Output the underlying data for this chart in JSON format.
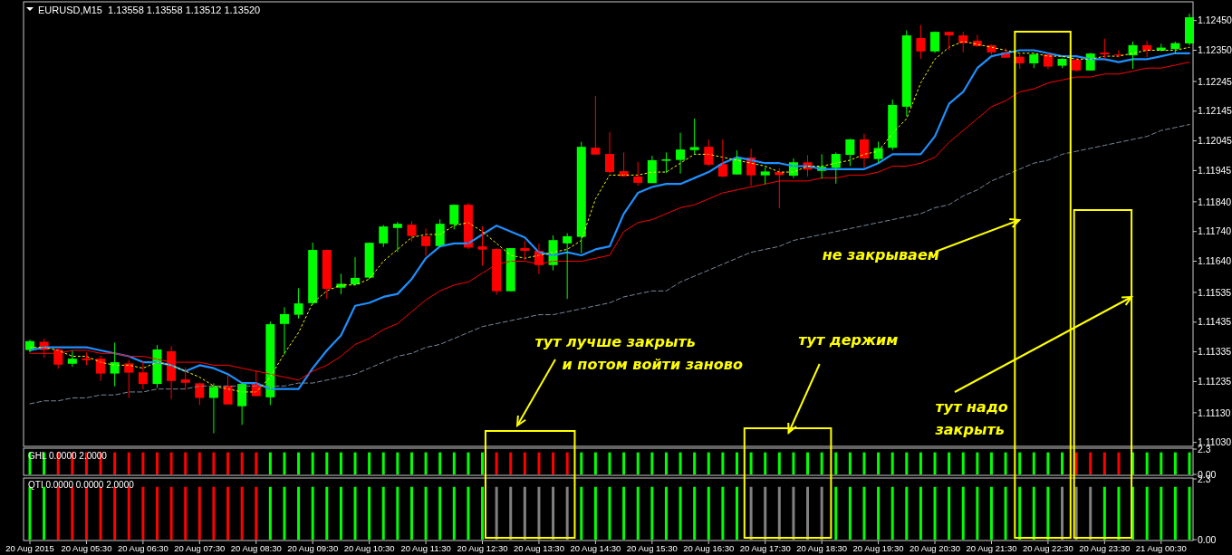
{
  "chart_data": [
    {
      "type": "candlestick",
      "title": "EURUSD,M15  1.13558 1.13558 1.13512 1.13520",
      "tick_labels": "y",
      "categories": [
        null,
        null,
        null,
        null,
        null,
        null,
        null,
        null,
        null,
        null,
        null,
        null,
        null,
        null,
        null,
        null,
        null,
        null,
        null,
        null,
        null,
        null,
        null,
        null,
        null,
        null,
        null,
        null,
        null,
        null,
        null,
        null,
        null,
        null,
        null,
        null,
        null,
        null,
        null,
        null,
        null,
        null,
        null,
        null,
        null,
        null,
        null,
        null,
        null,
        null,
        null,
        null,
        null,
        null,
        null,
        null,
        null,
        null,
        null,
        null,
        null,
        null,
        null,
        null,
        null,
        null,
        null,
        null,
        null,
        null,
        null,
        null,
        null,
        null,
        null,
        null,
        null,
        null,
        null,
        null,
        null,
        null,
        null
      ],
      "ylim": [
        1.1102,
        1.1251
      ],
      "yticks": [
        {
          "value": 1.1245,
          "label": "1.12450"
        },
        {
          "value": 1.1235,
          "label": "1.12350"
        },
        {
          "value": 1.12245,
          "label": "1.12245"
        },
        {
          "value": 1.12145,
          "label": "1.12145"
        },
        {
          "value": 1.12045,
          "label": "1.12045"
        },
        {
          "value": 1.11945,
          "label": "1.11945"
        },
        {
          "value": 1.1184,
          "label": "1.11840"
        },
        {
          "value": 1.1174,
          "label": "1.11740"
        },
        {
          "value": 1.1164,
          "label": "1.11640"
        },
        {
          "value": 1.11535,
          "label": "1.11535"
        },
        {
          "value": 1.11435,
          "label": "1.11435"
        },
        {
          "value": 1.11335,
          "label": "1.11335"
        },
        {
          "value": 1.11235,
          "label": "1.11235"
        },
        {
          "value": 1.1113,
          "label": "1.11130"
        },
        {
          "value": 1.1103,
          "label": "1.11030"
        }
      ],
      "ohlc": [
        [
          1.11341,
          1.11376,
          1.11333,
          1.11371
        ],
        [
          1.11369,
          1.11379,
          1.11315,
          1.11341
        ],
        [
          1.11343,
          1.11349,
          1.11278,
          1.11292
        ],
        [
          1.11295,
          1.11339,
          1.11285,
          1.11312
        ],
        [
          1.11313,
          1.11333,
          1.1129,
          1.11307
        ],
        [
          1.11312,
          1.11322,
          1.11237,
          1.11262
        ],
        [
          1.11262,
          1.11366,
          1.11219,
          1.113
        ],
        [
          1.11296,
          1.11308,
          1.1118,
          1.11265
        ],
        [
          1.11266,
          1.11305,
          1.11209,
          1.11227
        ],
        [
          1.11227,
          1.11358,
          1.11214,
          1.11343
        ],
        [
          1.11337,
          1.11354,
          1.11176,
          1.11237
        ],
        [
          1.11242,
          1.11283,
          1.11207,
          1.11231
        ],
        [
          1.11229,
          1.11231,
          1.11156,
          1.1118
        ],
        [
          1.1118,
          1.11229,
          1.11061,
          1.11217
        ],
        [
          1.11221,
          1.11257,
          1.11158,
          1.11158
        ],
        [
          1.11152,
          1.11231,
          1.11089,
          1.11227
        ],
        [
          1.11227,
          1.11272,
          1.11186,
          1.11186
        ],
        [
          1.11182,
          1.11437,
          1.11156,
          1.11428
        ],
        [
          1.11429,
          1.11485,
          1.11326,
          1.11462
        ],
        [
          1.1146,
          1.11549,
          1.11447,
          1.11498
        ],
        [
          1.11499,
          1.11703,
          1.11493,
          1.11678
        ],
        [
          1.11678,
          1.11678,
          1.11513,
          1.11547
        ],
        [
          1.11551,
          1.11598,
          1.11529,
          1.11564
        ],
        [
          1.11562,
          1.11654,
          1.11559,
          1.11584
        ],
        [
          1.11585,
          1.11703,
          1.1158,
          1.11702
        ],
        [
          1.117,
          1.11762,
          1.11688,
          1.11757
        ],
        [
          1.11752,
          1.11772,
          1.11671,
          1.11766
        ],
        [
          1.11763,
          1.11775,
          1.11706,
          1.11725
        ],
        [
          1.11724,
          1.1175,
          1.11658,
          1.11691
        ],
        [
          1.11691,
          1.11781,
          1.11688,
          1.11766
        ],
        [
          1.11764,
          1.11831,
          1.11747,
          1.1183
        ],
        [
          1.1183,
          1.11836,
          1.11681,
          1.11686
        ],
        [
          1.1169,
          1.11757,
          1.11625,
          1.11679
        ],
        [
          1.11681,
          1.11683,
          1.11527,
          1.11539
        ],
        [
          1.11539,
          1.11684,
          1.11539,
          1.11684
        ],
        [
          1.11684,
          1.11709,
          1.11643,
          1.11675
        ],
        [
          1.11675,
          1.11699,
          1.11597,
          1.11627
        ],
        [
          1.11627,
          1.11727,
          1.11609,
          1.11711
        ],
        [
          1.117,
          1.11734,
          1.11513,
          1.11724
        ],
        [
          1.11722,
          1.12042,
          1.11667,
          1.12025
        ],
        [
          1.12022,
          1.12196,
          1.11999,
          1.11999
        ],
        [
          1.12001,
          1.12075,
          1.11935,
          1.1194
        ],
        [
          1.11943,
          1.12006,
          1.11924,
          1.11926
        ],
        [
          1.11925,
          1.11974,
          1.11894,
          1.11904
        ],
        [
          1.11903,
          1.11995,
          1.11903,
          1.1198
        ],
        [
          1.11978,
          1.12006,
          1.11937,
          1.11983
        ],
        [
          1.11981,
          1.12072,
          1.11935,
          1.12016
        ],
        [
          1.12014,
          1.1212,
          1.12001,
          1.12024
        ],
        [
          1.12025,
          1.1205,
          1.1196,
          1.11965
        ],
        [
          1.11967,
          1.1205,
          1.11923,
          1.11925
        ],
        [
          1.11932,
          1.12013,
          1.11932,
          1.11986
        ],
        [
          1.11989,
          1.12019,
          1.11894,
          1.11929
        ],
        [
          1.11929,
          1.11957,
          1.11899,
          1.11942
        ],
        [
          1.1194,
          1.11954,
          1.11818,
          1.1193
        ],
        [
          1.11928,
          1.11986,
          1.1192,
          1.11973
        ],
        [
          1.11973,
          1.11997,
          1.11925,
          1.11948
        ],
        [
          1.11944,
          1.12,
          1.11918,
          1.11958
        ],
        [
          1.11954,
          1.12006,
          1.11901,
          1.12001
        ],
        [
          1.11998,
          1.12052,
          1.1196,
          1.1205
        ],
        [
          1.1205,
          1.12069,
          1.11955,
          1.11986
        ],
        [
          1.11984,
          1.12042,
          1.11971,
          1.12021
        ],
        [
          1.12022,
          1.12184,
          1.12014,
          1.12166
        ],
        [
          1.1216,
          1.12417,
          1.12128,
          1.124
        ],
        [
          1.12391,
          1.12435,
          1.12321,
          1.12346
        ],
        [
          1.12346,
          1.12413,
          1.12341,
          1.12412
        ],
        [
          1.12412,
          1.12412,
          1.12351,
          1.124
        ],
        [
          1.124,
          1.12412,
          1.12343,
          1.12374
        ],
        [
          1.12382,
          1.12402,
          1.12362,
          1.12364
        ],
        [
          1.12367,
          1.12369,
          1.12336,
          1.12343
        ],
        [
          1.12343,
          1.12356,
          1.12325,
          1.12325
        ],
        [
          1.12328,
          1.12341,
          1.12288,
          1.12306
        ],
        [
          1.12306,
          1.12341,
          1.1229,
          1.12336
        ],
        [
          1.12336,
          1.12341,
          1.12287,
          1.12295
        ],
        [
          1.12298,
          1.12324,
          1.1229,
          1.12321
        ],
        [
          1.12318,
          1.12323,
          1.12278,
          1.12282
        ],
        [
          1.12282,
          1.12341,
          1.12282,
          1.12339
        ],
        [
          1.12342,
          1.12389,
          1.12321,
          1.12336
        ],
        [
          1.12336,
          1.12351,
          1.12326,
          1.12333
        ],
        [
          1.12333,
          1.12379,
          1.12287,
          1.12367
        ],
        [
          1.12367,
          1.12382,
          1.12326,
          1.12349
        ],
        [
          1.12349,
          1.12372,
          1.12346,
          1.12359
        ],
        [
          1.12354,
          1.12379,
          1.12338,
          1.12374
        ],
        [
          1.12373,
          1.12473,
          1.12367,
          1.12461
        ]
      ],
      "colors": [
        "#00ff00",
        "#ff0000",
        "#ff0000",
        "#00ff00",
        "#ff0000",
        "#ff0000",
        "#00ff00",
        "#ff0000",
        "#ff0000",
        "#00ff00",
        "#ff0000",
        "#ff0000",
        "#ff0000",
        "#00ff00",
        "#ff0000",
        "#00ff00",
        "#ff0000",
        "#00ff00",
        "#00ff00",
        "#00ff00",
        "#00ff00",
        "#ff0000",
        "#00ff00",
        "#00ff00",
        "#00ff00",
        "#00ff00",
        "#00ff00",
        "#ff0000",
        "#ff0000",
        "#00ff00",
        "#00ff00",
        "#ff0000",
        "#ff0000",
        "#ff0000",
        "#00ff00",
        "#ff0000",
        "#ff0000",
        "#00ff00",
        "#00ff00",
        "#00ff00",
        "#ff0000",
        "#ff0000",
        "#ff0000",
        "#ff0000",
        "#00ff00",
        "#00ff00",
        "#00ff00",
        "#00ff00",
        "#ff0000",
        "#ff0000",
        "#00ff00",
        "#ff0000",
        "#00ff00",
        "#ff0000",
        "#00ff00",
        "#ff0000",
        "#00ff00",
        "#00ff00",
        "#00ff00",
        "#ff0000",
        "#00ff00",
        "#00ff00",
        "#00ff00",
        "#ff0000",
        "#00ff00",
        "#ff0000",
        "#ff0000",
        "#ff0000",
        "#ff0000",
        "#ff0000",
        "#ff0000",
        "#00ff00",
        "#ff0000",
        "#00ff00",
        "#ff0000",
        "#00ff00",
        "#ff0000",
        "#ff0000",
        "#00ff00",
        "#ff0000",
        "#00ff00",
        "#00ff00",
        "#00ff00"
      ],
      "series": [
        {
          "type": "line",
          "color": "#1e90ff",
          "values": [
            1.1134,
            1.1135,
            1.1135,
            1.1135,
            1.1135,
            1.1134,
            1.1133,
            1.1132,
            1.113,
            1.113,
            1.1129,
            1.1127,
            1.1129,
            1.1128,
            1.1126,
            1.1123,
            1.1123,
            1.1121,
            1.1121,
            1.1121,
            1.1128,
            1.1134,
            1.1139,
            1.1149,
            1.115,
            1.1152,
            1.1153,
            1.1158,
            1.1165,
            1.1169,
            1.117,
            1.117,
            1.1173,
            1.1176,
            1.1174,
            1.1172,
            1.1167,
            1.1166,
            1.1167,
            1.1166,
            1.1168,
            1.1169,
            1.118,
            1.1187,
            1.1189,
            1.119,
            1.119,
            1.1192,
            1.1194,
            1.1197,
            1.1199,
            1.1198,
            1.1197,
            1.1197,
            1.1196,
            1.1196,
            1.1195,
            1.1195,
            1.1195,
            1.1195,
            1.1197,
            1.12,
            1.12,
            1.12,
            1.1206,
            1.1217,
            1.1221,
            1.1229,
            1.1233,
            1.1234,
            1.1235,
            1.1235,
            1.1234,
            1.1233,
            1.1233,
            1.1232,
            1.1232,
            1.1231,
            1.1232,
            1.1232,
            1.1233,
            1.1234,
            1.1234
          ]
        },
        {
          "type": "line",
          "color": "#ff0000",
          "values": [
            1.1133,
            1.1133,
            1.1133,
            1.1134,
            1.1134,
            1.1133,
            1.1133,
            1.1132,
            1.1132,
            1.1131,
            1.113,
            1.113,
            1.113,
            1.1129,
            1.1129,
            1.1128,
            1.1127,
            1.1126,
            1.1125,
            1.1124,
            1.1127,
            1.1129,
            1.1132,
            1.1136,
            1.1138,
            1.1141,
            1.1143,
            1.1147,
            1.1151,
            1.1154,
            1.1156,
            1.1157,
            1.116,
            1.1163,
            1.1164,
            1.1164,
            1.1163,
            1.1164,
            1.1164,
            1.1164,
            1.1165,
            1.1166,
            1.1174,
            1.1177,
            1.1178,
            1.118,
            1.1182,
            1.1183,
            1.1185,
            1.1187,
            1.1188,
            1.1189,
            1.119,
            1.1191,
            1.1191,
            1.1191,
            1.1192,
            1.1192,
            1.1193,
            1.1193,
            1.1194,
            1.1196,
            1.1196,
            1.1197,
            1.1199,
            1.1204,
            1.1208,
            1.1212,
            1.1216,
            1.1218,
            1.1221,
            1.1222,
            1.1224,
            1.1225,
            1.1226,
            1.1226,
            1.1227,
            1.1227,
            1.1228,
            1.1229,
            1.1229,
            1.123,
            1.1231
          ]
        },
        {
          "type": "line",
          "color": "#778899",
          "line_style": "dashed",
          "values": [
            1.1116,
            1.1117,
            1.1117,
            1.1118,
            1.1118,
            1.1119,
            1.1119,
            1.112,
            1.112,
            1.1121,
            1.1121,
            1.1121,
            1.1122,
            1.1122,
            1.1122,
            1.1122,
            1.1122,
            1.1122,
            1.1122,
            1.1123,
            1.1123,
            1.1124,
            1.1125,
            1.1126,
            1.1128,
            1.113,
            1.1132,
            1.1133,
            1.1135,
            1.1136,
            1.1138,
            1.114,
            1.1142,
            1.1143,
            1.1144,
            1.1145,
            1.1146,
            1.1146,
            1.1147,
            1.1148,
            1.1149,
            1.115,
            1.1152,
            1.1153,
            1.1154,
            1.1154,
            1.1157,
            1.1159,
            1.1161,
            1.1163,
            1.1165,
            1.1167,
            1.1168,
            1.1169,
            1.1171,
            1.1172,
            1.1173,
            1.1174,
            1.1175,
            1.1176,
            1.1177,
            1.1178,
            1.1179,
            1.118,
            1.1182,
            1.1183,
            1.1186,
            1.1188,
            1.1191,
            1.1193,
            1.1195,
            1.1197,
            1.1198,
            1.12,
            1.1201,
            1.1202,
            1.1203,
            1.1204,
            1.1205,
            1.1206,
            1.1208,
            1.1209,
            1.121
          ]
        },
        {
          "type": "line",
          "color": "#ffff00",
          "line_style": "dotted",
          "values": [
            1.1135,
            1.1135,
            1.1134,
            1.1132,
            1.1132,
            1.113,
            1.1129,
            1.1129,
            1.1128,
            1.113,
            1.1129,
            1.1127,
            1.1125,
            1.1122,
            1.1121,
            1.112,
            1.112,
            1.1125,
            1.1133,
            1.114,
            1.115,
            1.1154,
            1.1156,
            1.1156,
            1.1158,
            1.1164,
            1.1168,
            1.1172,
            1.1173,
            1.1173,
            1.1176,
            1.1177,
            1.1174,
            1.117,
            1.1166,
            1.1165,
            1.1166,
            1.1167,
            1.1168,
            1.1171,
            1.1185,
            1.1193,
            1.1193,
            1.1193,
            1.1194,
            1.1194,
            1.1197,
            1.12,
            1.12,
            1.1199,
            1.1198,
            1.1197,
            1.1196,
            1.1194,
            1.1194,
            1.1196,
            1.1196,
            1.1197,
            1.1198,
            1.12,
            1.1201,
            1.1207,
            1.1212,
            1.1224,
            1.1232,
            1.1236,
            1.1238,
            1.1237,
            1.1236,
            1.1235,
            1.1234,
            1.1234,
            1.1233,
            1.1233,
            1.1232,
            1.1232,
            1.1233,
            1.1233,
            1.1234,
            1.1235,
            1.1235,
            1.1235,
            1.1236
          ]
        }
      ],
      "annotations": [
        "тут лучше закрыть\nи потом войти заново",
        "тут держим",
        "не закрываем",
        "тут надо\nзакрыть"
      ]
    },
    {
      "type": "bar",
      "title": "GHL 0.0000 2.0000",
      "tick_labels": "y",
      "categories": [
        null,
        null,
        null,
        null,
        null,
        null,
        null,
        null,
        null,
        null,
        null,
        null,
        null,
        null,
        null,
        null,
        null,
        null,
        null,
        null,
        null,
        null,
        null,
        null,
        null,
        null,
        null,
        null,
        null,
        null,
        null,
        null,
        null,
        null,
        null,
        null,
        null,
        null,
        null,
        null,
        null,
        null,
        null,
        null,
        null,
        null,
        null,
        null,
        null,
        null,
        null,
        null,
        null,
        null,
        null,
        null,
        null,
        null,
        null,
        null,
        null,
        null,
        null,
        null,
        null,
        null,
        null,
        null,
        null,
        null,
        null,
        null,
        null,
        null,
        null,
        null,
        null,
        null,
        null,
        null,
        null,
        null,
        null
      ],
      "ylim": [
        0,
        2.3
      ],
      "yticks": [
        {
          "value": 2.3,
          "label": "2.3"
        },
        {
          "value": 0,
          "label": "0.00"
        }
      ],
      "values": [
        2,
        2,
        2,
        2,
        2,
        2,
        2,
        2,
        2,
        2,
        2,
        2,
        2,
        2,
        2,
        2,
        2,
        2,
        2,
        2,
        2,
        2,
        2,
        2,
        2,
        2,
        2,
        2,
        2,
        2,
        2,
        2,
        2,
        2,
        2,
        2,
        2,
        2,
        2,
        2,
        2,
        2,
        2,
        2,
        2,
        2,
        2,
        2,
        2,
        2,
        2,
        2,
        2,
        2,
        2,
        2,
        2,
        2,
        2,
        2,
        2,
        2,
        2,
        2,
        2,
        2,
        2,
        2,
        2,
        2,
        2,
        2,
        2,
        2,
        2,
        2,
        2,
        2,
        2,
        2,
        2,
        2,
        2
      ],
      "colors": [
        "#00ff00",
        "#00ff00",
        "#ff0000",
        "#ff0000",
        "#ff0000",
        "#ff0000",
        "#ff0000",
        "#ff0000",
        "#ff0000",
        "#ff0000",
        "#ff0000",
        "#ff0000",
        "#ff0000",
        "#ff0000",
        "#ff0000",
        "#ff0000",
        "#ff0000",
        "#00ff00",
        "#00ff00",
        "#00ff00",
        "#00ff00",
        "#00ff00",
        "#00ff00",
        "#00ff00",
        "#00ff00",
        "#00ff00",
        "#00ff00",
        "#00ff00",
        "#00ff00",
        "#00ff00",
        "#00ff00",
        "#00ff00",
        "#00ff00",
        "#ff0000",
        "#ff0000",
        "#ff0000",
        "#ff0000",
        "#ff0000",
        "#ff0000",
        "#00ff00",
        "#00ff00",
        "#00ff00",
        "#00ff00",
        "#00ff00",
        "#00ff00",
        "#00ff00",
        "#00ff00",
        "#00ff00",
        "#00ff00",
        "#00ff00",
        "#00ff00",
        "#00ff00",
        "#00ff00",
        "#00ff00",
        "#00ff00",
        "#00ff00",
        "#00ff00",
        "#00ff00",
        "#00ff00",
        "#00ff00",
        "#00ff00",
        "#00ff00",
        "#00ff00",
        "#00ff00",
        "#00ff00",
        "#00ff00",
        "#00ff00",
        "#00ff00",
        "#00ff00",
        "#00ff00",
        "#00ff00",
        "#00ff00",
        "#00ff00",
        "#00ff00",
        "#ff0000",
        "#ff0000",
        "#ff0000",
        "#ff0000",
        "#00ff00",
        "#00ff00",
        "#00ff00",
        "#00ff00",
        "#00ff00"
      ]
    },
    {
      "type": "bar",
      "title": "QTI 0.0000 0.0000 2.0000",
      "categories": [
        "20 Aug 2015",
        null,
        null,
        null,
        "20 Aug 05:30",
        null,
        null,
        null,
        "20 Aug 06:30",
        null,
        null,
        null,
        "20 Aug 07:30",
        null,
        null,
        null,
        "20 Aug 08:30",
        null,
        null,
        null,
        "20 Aug 09:30",
        null,
        null,
        null,
        "20 Aug 10:30",
        null,
        null,
        null,
        "20 Aug 11:30",
        null,
        null,
        null,
        "20 Aug 12:30",
        null,
        null,
        null,
        "20 Aug 13:30",
        null,
        null,
        null,
        "20 Aug 14:30",
        null,
        null,
        null,
        "20 Aug 15:30",
        null,
        null,
        null,
        "20 Aug 16:30",
        null,
        null,
        null,
        "20 Aug 17:30",
        null,
        null,
        null,
        "20 Aug 18:30",
        null,
        null,
        null,
        "20 Aug 19:30",
        null,
        null,
        null,
        "20 Aug 20:30",
        null,
        null,
        null,
        "20 Aug 21:30",
        null,
        null,
        null,
        "20 Aug 22:30",
        null,
        null,
        null,
        "20 Aug 23:30",
        null,
        null,
        null,
        "21 Aug 00:30",
        null,
        null
      ],
      "ylim": [
        0,
        2.3
      ],
      "yticks": [
        {
          "value": 2.3,
          "label": "2.3"
        },
        {
          "value": 0,
          "label": "0.00"
        }
      ],
      "values": [
        2,
        2,
        2,
        2,
        2,
        2,
        2,
        2,
        2,
        2,
        2,
        2,
        2,
        2,
        2,
        2,
        2,
        2,
        2,
        2,
        2,
        2,
        2,
        2,
        2,
        2,
        2,
        2,
        2,
        2,
        2,
        2,
        2,
        2,
        2,
        2,
        2,
        2,
        2,
        2,
        2,
        2,
        2,
        2,
        2,
        2,
        2,
        2,
        2,
        2,
        2,
        2,
        2,
        2,
        2,
        2,
        2,
        2,
        2,
        2,
        2,
        2,
        2,
        2,
        2,
        2,
        2,
        2,
        2,
        2,
        2,
        2,
        2,
        2,
        2,
        2,
        2,
        2,
        2,
        2,
        2,
        2,
        2
      ],
      "colors": [
        "#00ff00",
        "#00ff00",
        "#ff0000",
        "#ff0000",
        "#ff0000",
        "#ff0000",
        "#ff0000",
        "#ff0000",
        "#ff0000",
        "#ff0000",
        "#ff0000",
        "#ff0000",
        "#ff0000",
        "#ff0000",
        "#ff0000",
        "#ff0000",
        "#ff0000",
        "#00ff00",
        "#00ff00",
        "#00ff00",
        "#00ff00",
        "#00ff00",
        "#00ff00",
        "#00ff00",
        "#00ff00",
        "#00ff00",
        "#00ff00",
        "#00ff00",
        "#00ff00",
        "#00ff00",
        "#00ff00",
        "#00ff00",
        "#00ff00",
        "#808080",
        "#808080",
        "#808080",
        "#808080",
        "#808080",
        "#808080",
        "#00ff00",
        "#00ff00",
        "#00ff00",
        "#00ff00",
        "#00ff00",
        "#00ff00",
        "#00ff00",
        "#00ff00",
        "#00ff00",
        "#00ff00",
        "#00ff00",
        "#00ff00",
        "#808080",
        "#808080",
        "#808080",
        "#808080",
        "#808080",
        "#808080",
        "#00ff00",
        "#00ff00",
        "#00ff00",
        "#00ff00",
        "#00ff00",
        "#00ff00",
        "#00ff00",
        "#00ff00",
        "#00ff00",
        "#00ff00",
        "#00ff00",
        "#00ff00",
        "#00ff00",
        "#00ff00",
        "#00ff00",
        "#00ff00",
        "#808080",
        "#808080",
        "#808080",
        "#00ff00",
        "#00ff00",
        "#00ff00",
        "#00ff00",
        "#00ff00",
        "#00ff00",
        "#00ff00"
      ]
    }
  ]
}
